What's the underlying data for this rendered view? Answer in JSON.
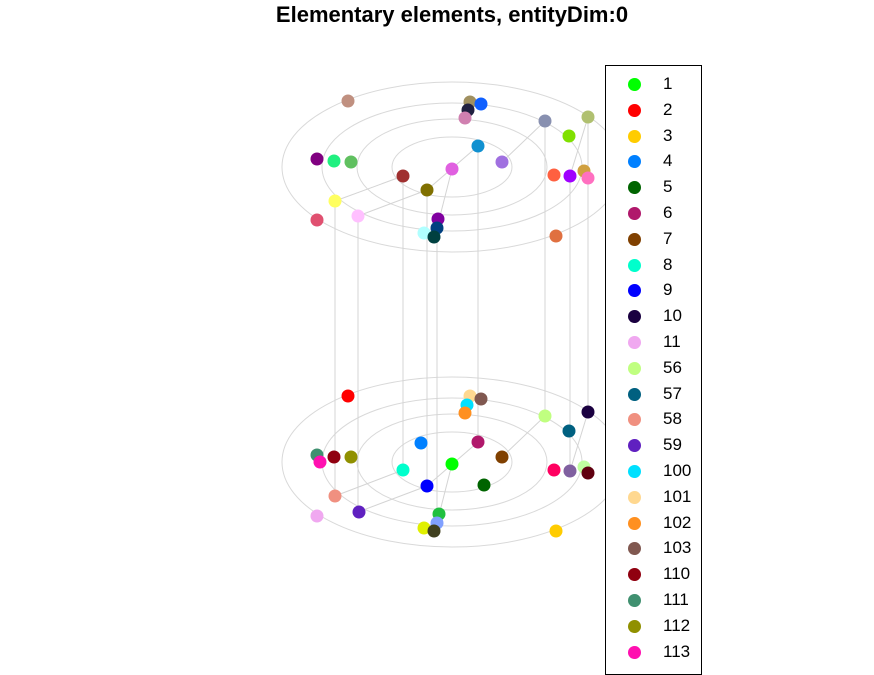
{
  "chart_data": {
    "type": "scatter",
    "title": "Elementary elements, entityDim:0",
    "legend": {
      "placement": "right",
      "entries": [
        {
          "label": "1",
          "color": "#00ff00"
        },
        {
          "label": "2",
          "color": "#ff0000"
        },
        {
          "label": "3",
          "color": "#ffcc00"
        },
        {
          "label": "4",
          "color": "#0080ff"
        },
        {
          "label": "5",
          "color": "#006400"
        },
        {
          "label": "6",
          "color": "#b0186b"
        },
        {
          "label": "7",
          "color": "#804000"
        },
        {
          "label": "8",
          "color": "#00ffcc"
        },
        {
          "label": "9",
          "color": "#0000ff"
        },
        {
          "label": "10",
          "color": "#1a0040"
        },
        {
          "label": "11",
          "color": "#f0a8f0"
        },
        {
          "label": "56",
          "color": "#c0ff80"
        },
        {
          "label": "57",
          "color": "#006080"
        },
        {
          "label": "58",
          "color": "#f09080"
        },
        {
          "label": "59",
          "color": "#6020c0"
        },
        {
          "label": "100",
          "color": "#00e0ff"
        },
        {
          "label": "101",
          "color": "#ffd890"
        },
        {
          "label": "102",
          "color": "#ff9020"
        },
        {
          "label": "103",
          "color": "#805850"
        },
        {
          "label": "110",
          "color": "#900010"
        },
        {
          "label": "111",
          "color": "#409070"
        },
        {
          "label": "112",
          "color": "#909000"
        },
        {
          "label": "113",
          "color": "#ff10b0"
        }
      ]
    },
    "grid": false,
    "layers": [
      {
        "points": [
          {
            "color": "#c09080"
          },
          {
            "color": "#a09060"
          },
          {
            "color": "#202040"
          },
          {
            "color": "#1060ff"
          },
          {
            "color": "#d080b0"
          },
          {
            "color": "#8890b0"
          },
          {
            "color": "#b0c070"
          },
          {
            "color": "#80e000"
          },
          {
            "color": "#1090d0"
          },
          {
            "color": "#800080"
          },
          {
            "color": "#20f080"
          },
          {
            "color": "#60c060"
          },
          {
            "color": "#a070e0"
          },
          {
            "color": "#e060e0"
          },
          {
            "color": "#a03030"
          },
          {
            "color": "#807000"
          },
          {
            "color": "#ff6040"
          },
          {
            "color": "#a000ff"
          },
          {
            "color": "#d0a040"
          },
          {
            "color": "#ff70c0"
          },
          {
            "color": "#ffff60"
          },
          {
            "color": "#e05070"
          },
          {
            "color": "#ffc0ff"
          },
          {
            "color": "#8000a0"
          },
          {
            "color": "#004080"
          },
          {
            "color": "#b0ffff"
          },
          {
            "color": "#004040"
          },
          {
            "color": "#e07040"
          }
        ]
      },
      {
        "points": [
          {
            "color": "#ff0000"
          },
          {
            "color": "#ffd890"
          },
          {
            "color": "#805850"
          },
          {
            "color": "#00e0ff"
          },
          {
            "color": "#ff9020"
          },
          {
            "color": "#c0ff80"
          },
          {
            "color": "#1a0040"
          },
          {
            "color": "#006080"
          },
          {
            "color": "#0080ff"
          },
          {
            "color": "#b0186b"
          },
          {
            "color": "#409070"
          },
          {
            "color": "#900010"
          },
          {
            "color": "#909000"
          },
          {
            "color": "#ff10b0"
          },
          {
            "color": "#00ffcc"
          },
          {
            "color": "#00ff00"
          },
          {
            "color": "#804000"
          },
          {
            "color": "#ff0060"
          },
          {
            "color": "#8060a0"
          },
          {
            "color": "#c0ffa0"
          },
          {
            "color": "#600010"
          },
          {
            "color": "#0000ff"
          },
          {
            "color": "#006400"
          },
          {
            "color": "#f09080"
          },
          {
            "color": "#6020c0"
          },
          {
            "color": "#f0a8f0"
          },
          {
            "color": "#20c040"
          },
          {
            "color": "#80a0ff"
          },
          {
            "color": "#e0f000"
          },
          {
            "color": "#404020"
          },
          {
            "color": "#ffcc00"
          }
        ]
      }
    ]
  }
}
